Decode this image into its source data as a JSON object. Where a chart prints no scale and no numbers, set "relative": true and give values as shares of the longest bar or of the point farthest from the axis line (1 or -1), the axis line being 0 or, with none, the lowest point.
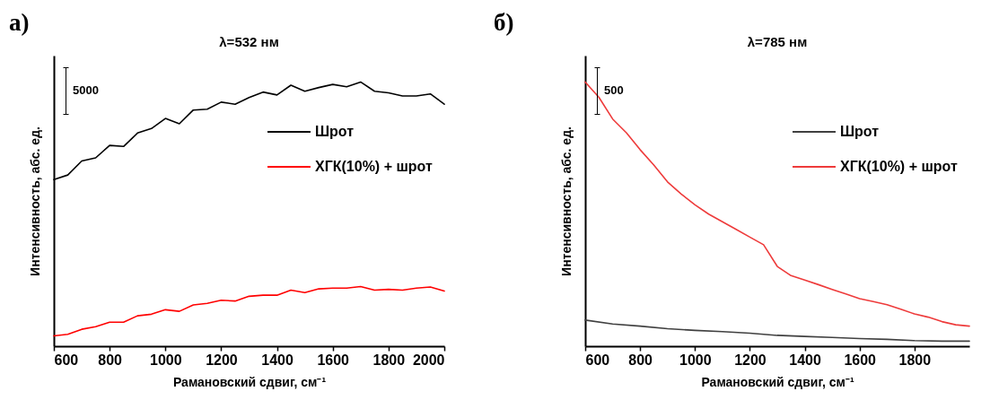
{
  "chart_data": [
    {
      "type": "line",
      "title": "λ=532 нм",
      "xlabel": "Рамановский сдвиг, см⁻¹",
      "ylabel": "Интенсивность, абс. ед.",
      "relative": true,
      "xlim": [
        600,
        2000
      ],
      "xticks": [
        600,
        800,
        1000,
        1200,
        1400,
        1600,
        1800,
        2000
      ],
      "grid": false,
      "legend": "top right",
      "annotations": [
        "а)",
        "5000"
      ],
      "x": [
        600,
        650,
        700,
        750,
        800,
        850,
        900,
        950,
        1000,
        1050,
        1100,
        1150,
        1200,
        1250,
        1300,
        1350,
        1400,
        1450,
        1500,
        1550,
        1600,
        1650,
        1700,
        1750,
        1800,
        1850,
        1900,
        1950,
        2000
      ],
      "series": [
        {
          "name": "Шрот",
          "color": "#000000",
          "values": [
            0.631,
            0.648,
            0.701,
            0.713,
            0.76,
            0.756,
            0.807,
            0.824,
            0.862,
            0.842,
            0.894,
            0.897,
            0.924,
            0.916,
            0.941,
            0.962,
            0.951,
            0.988,
            0.965,
            0.979,
            0.991,
            0.982,
            1,
            0.965,
            0.959,
            0.947,
            0.947,
            0.955,
            0.916
          ]
        },
        {
          "name": "ХГК(10%) + шрот",
          "color": "#ff0000",
          "values": [
            0.039,
            0.045,
            0.064,
            0.074,
            0.091,
            0.091,
            0.115,
            0.121,
            0.138,
            0.132,
            0.156,
            0.162,
            0.174,
            0.171,
            0.189,
            0.193,
            0.193,
            0.212,
            0.203,
            0.217,
            0.22,
            0.22,
            0.226,
            0.212,
            0.215,
            0.212,
            0.22,
            0.224,
            0.209
          ]
        }
      ]
    },
    {
      "type": "line",
      "title": "λ=785 нм",
      "xlabel": "Рамановский сдвиг, см⁻¹",
      "ylabel": "Интенсивность, абс. ед.",
      "relative": true,
      "xlim": [
        600,
        2000
      ],
      "xticks": [
        600,
        800,
        1000,
        1200,
        1400,
        1600,
        1800
      ],
      "grid": false,
      "legend": "top right",
      "annotations": [
        "б)",
        "500"
      ],
      "series": [
        {
          "name": "Шрот",
          "color": "#404040",
          "x": [
            600,
            700,
            800,
            900,
            1000,
            1100,
            1200,
            1300,
            1400,
            1500,
            1600,
            1700,
            1800,
            1900,
            2000
          ],
          "values": [
            0.099,
            0.084,
            0.076,
            0.066,
            0.06,
            0.055,
            0.049,
            0.041,
            0.037,
            0.033,
            0.029,
            0.026,
            0.021,
            0.019,
            0.019
          ]
        },
        {
          "name": "ХГК(10%) + шрот",
          "color": "#ee3b3b",
          "x": [
            600,
            650,
            700,
            750,
            800,
            850,
            900,
            950,
            1000,
            1050,
            1100,
            1150,
            1200,
            1250,
            1300,
            1350,
            1400,
            1450,
            1500,
            1550,
            1600,
            1650,
            1700,
            1750,
            1800,
            1850,
            1900,
            1950,
            2000
          ],
          "values": [
            1,
            0.942,
            0.86,
            0.808,
            0.744,
            0.686,
            0.622,
            0.576,
            0.535,
            0.5,
            0.471,
            0.442,
            0.413,
            0.384,
            0.302,
            0.267,
            0.25,
            0.233,
            0.215,
            0.198,
            0.18,
            0.169,
            0.157,
            0.14,
            0.122,
            0.11,
            0.093,
            0.081,
            0.076
          ]
        }
      ]
    }
  ]
}
